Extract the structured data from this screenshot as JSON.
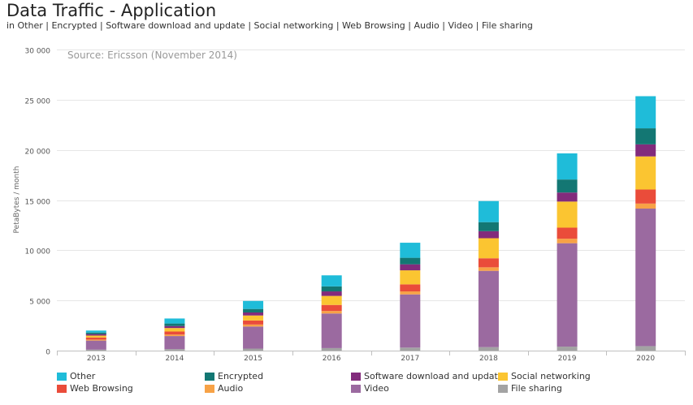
{
  "chart_data": {
    "type": "bar",
    "stacked": true,
    "title": "Data Traffic - Application",
    "subtitle": "in Other | Encrypted | Software download and update | Social networking | Web Browsing | Audio | Video | File sharing",
    "annotation": "Source: Ericsson (November 2014)",
    "xlabel": "",
    "ylabel": "PetaBytes / month",
    "ylim": [
      0,
      30000
    ],
    "yticks": [
      0,
      5000,
      10000,
      15000,
      20000,
      25000,
      30000
    ],
    "ytick_labels": [
      "0",
      "5 000",
      "10 000",
      "15 000",
      "20 000",
      "25 000",
      "30 000"
    ],
    "grid": true,
    "legend_position": "bottom",
    "categories": [
      "2013",
      "2014",
      "2015",
      "2016",
      "2017",
      "2018",
      "2019",
      "2020"
    ],
    "series": [
      {
        "name": "File sharing",
        "color": "#a3a3a3",
        "values": [
          100,
          150,
          200,
          250,
          300,
          350,
          400,
          450
        ]
      },
      {
        "name": "Video",
        "color": "#9b6aa0",
        "values": [
          900,
          1300,
          2200,
          3450,
          5300,
          7600,
          10300,
          13700
        ]
      },
      {
        "name": "Audio",
        "color": "#f7a246",
        "values": [
          100,
          150,
          200,
          250,
          300,
          350,
          450,
          500
        ]
      },
      {
        "name": "Web Browsing",
        "color": "#ea4c3a",
        "values": [
          200,
          300,
          400,
          600,
          700,
          900,
          1100,
          1400
        ]
      },
      {
        "name": "Social networking",
        "color": "#fbc531",
        "values": [
          200,
          350,
          500,
          900,
          1400,
          2000,
          2600,
          3300
        ]
      },
      {
        "name": "Software download and update",
        "color": "#822b7c",
        "values": [
          150,
          200,
          300,
          450,
          600,
          700,
          900,
          1200
        ]
      },
      {
        "name": "Encrypted",
        "color": "#137773",
        "values": [
          150,
          250,
          350,
          500,
          650,
          900,
          1300,
          1600
        ]
      },
      {
        "name": "Other",
        "color": "#1fbcd9",
        "values": [
          200,
          500,
          800,
          1100,
          1500,
          2100,
          2600,
          3200
        ]
      }
    ],
    "legend_order": [
      "Other",
      "Encrypted",
      "Software download and update",
      "Social networking",
      "Web Browsing",
      "Audio",
      "Video",
      "File sharing"
    ]
  }
}
